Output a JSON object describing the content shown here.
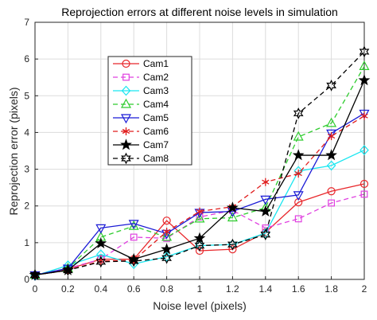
{
  "chart_data": {
    "type": "line",
    "title": "Reprojection errors at different noise levels in simulation",
    "xlabel": "Noise level (pixels)",
    "ylabel": "Reprojection error (pixels)",
    "xlim": [
      0,
      2
    ],
    "ylim": [
      0,
      7
    ],
    "xticks": [
      "0",
      "0.2",
      "0.4",
      "0.6",
      "0.8",
      "1",
      "1.2",
      "1.4",
      "1.6",
      "1.8",
      "2"
    ],
    "yticks": [
      "0",
      "1",
      "2",
      "3",
      "4",
      "5",
      "6",
      "7"
    ],
    "grid": true,
    "legend_position": "upper-left",
    "x": [
      0,
      0.2,
      0.4,
      0.6,
      0.8,
      1.0,
      1.2,
      1.4,
      1.6,
      1.8,
      2.0
    ],
    "series": [
      {
        "name": "Cam1",
        "color": "#e8262a",
        "marker": "circle",
        "dash": "solid",
        "values": [
          0.12,
          0.28,
          0.55,
          0.55,
          1.6,
          0.78,
          0.82,
          1.28,
          2.1,
          2.4,
          2.6
        ]
      },
      {
        "name": "Cam2",
        "color": "#e040e0",
        "marker": "square",
        "dash": "dashed",
        "values": [
          0.12,
          0.3,
          0.55,
          1.15,
          1.12,
          1.7,
          1.88,
          1.4,
          1.65,
          2.08,
          2.32
        ]
      },
      {
        "name": "Cam3",
        "color": "#19e6f0",
        "marker": "diamond",
        "dash": "solid",
        "values": [
          0.1,
          0.38,
          0.68,
          0.42,
          0.62,
          0.92,
          0.95,
          1.26,
          2.95,
          3.1,
          3.52
        ]
      },
      {
        "name": "Cam4",
        "color": "#2ecc2e",
        "marker": "triangle-up",
        "dash": "dashed",
        "values": [
          0.12,
          0.3,
          1.15,
          1.45,
          1.15,
          1.65,
          1.68,
          1.95,
          3.88,
          4.25,
          5.8
        ]
      },
      {
        "name": "Cam5",
        "color": "#1a1ad6",
        "marker": "triangle-down",
        "dash": "solid",
        "values": [
          0.12,
          0.3,
          1.4,
          1.52,
          1.25,
          1.82,
          1.85,
          2.18,
          2.3,
          3.98,
          4.52
        ]
      },
      {
        "name": "Cam6",
        "color": "#e01c1c",
        "marker": "asterisk",
        "dash": "dashed",
        "values": [
          0.12,
          0.25,
          0.5,
          0.52,
          1.3,
          1.85,
          1.98,
          2.65,
          2.88,
          3.9,
          4.45
        ]
      },
      {
        "name": "Cam7",
        "color": "#000000",
        "marker": "pentagram",
        "dash": "solid",
        "values": [
          0.12,
          0.25,
          0.98,
          0.55,
          0.82,
          1.12,
          1.95,
          1.85,
          3.38,
          3.38,
          5.42
        ]
      },
      {
        "name": "Cam8",
        "color": "#000000",
        "marker": "hexagram",
        "dash": "dashed",
        "values": [
          0.12,
          0.25,
          0.48,
          0.5,
          0.58,
          0.92,
          0.95,
          1.22,
          4.52,
          5.28,
          6.2
        ]
      }
    ]
  }
}
